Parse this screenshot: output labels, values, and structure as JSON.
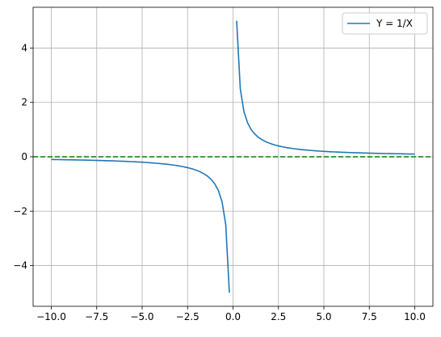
{
  "chart_data": {
    "type": "line",
    "x": [
      -10,
      -9.8,
      -9.6,
      -9.4,
      -9.2,
      -9,
      -8.8,
      -8.6,
      -8.4,
      -8.2,
      -8,
      -7.8,
      -7.6,
      -7.4,
      -7.2,
      -7,
      -6.8,
      -6.6,
      -6.4,
      -6.2,
      -6,
      -5.8,
      -5.6,
      -5.4,
      -5.2,
      -5,
      -4.8,
      -4.6,
      -4.4,
      -4.2,
      -4,
      -3.8,
      -3.6,
      -3.4,
      -3.2,
      -3,
      -2.8,
      -2.6,
      -2.4,
      -2.2,
      -2,
      -1.8,
      -1.6,
      -1.4,
      -1.2,
      -1,
      -0.8,
      -0.6,
      -0.4,
      -0.2,
      0,
      0.2,
      0.4,
      0.6,
      0.8,
      1,
      1.2,
      1.4,
      1.6,
      1.8,
      2,
      2.2,
      2.4,
      2.6,
      2.8,
      3,
      3.2,
      3.4,
      3.6,
      3.8,
      4,
      4.2,
      4.4,
      4.6,
      4.8,
      5,
      5.2,
      5.4,
      5.6,
      5.8,
      6,
      6.2,
      6.4,
      6.6,
      6.8,
      7,
      7.2,
      7.4,
      7.6,
      7.8,
      8,
      8.2,
      8.4,
      8.6,
      8.8,
      9,
      9.2,
      9.4,
      9.6,
      9.8,
      10
    ],
    "series": [
      {
        "name": "Y = 1/X",
        "color": "#1f77b4",
        "values": [
          -0.1,
          -0.10204,
          -0.10417,
          -0.10638,
          -0.1087,
          -0.11111,
          -0.11364,
          -0.11628,
          -0.11905,
          -0.12195,
          -0.125,
          -0.12821,
          -0.13158,
          -0.13514,
          -0.13889,
          -0.14286,
          -0.14706,
          -0.15152,
          -0.15625,
          -0.16129,
          -0.16667,
          -0.17241,
          -0.17857,
          -0.18519,
          -0.19231,
          -0.2,
          -0.20833,
          -0.21739,
          -0.22727,
          -0.2381,
          -0.25,
          -0.26316,
          -0.27778,
          -0.29412,
          -0.3125,
          -0.33333,
          -0.35714,
          -0.38462,
          -0.41667,
          -0.45455,
          -0.5,
          -0.55556,
          -0.625,
          -0.71429,
          -0.83333,
          -1,
          -1.25,
          -1.66667,
          -2.5,
          -5,
          null,
          5,
          2.5,
          1.66667,
          1.25,
          1,
          0.83333,
          0.71429,
          0.625,
          0.55556,
          0.5,
          0.45455,
          0.41667,
          0.38462,
          0.35714,
          0.33333,
          0.3125,
          0.29412,
          0.27778,
          0.26316,
          0.25,
          0.2381,
          0.22727,
          0.21739,
          0.20833,
          0.2,
          0.19231,
          0.18519,
          0.17857,
          0.17241,
          0.16667,
          0.16129,
          0.15625,
          0.15152,
          0.14706,
          0.14286,
          0.13889,
          0.13514,
          0.13158,
          0.12821,
          0.125,
          0.12195,
          0.11905,
          0.11628,
          0.11364,
          0.11111,
          0.1087,
          0.10638,
          0.10417,
          0.10204,
          0.1
        ]
      }
    ],
    "hline": {
      "value": 0,
      "color": "#008000",
      "linestyle": "dashed"
    },
    "xlim": [
      -11,
      11
    ],
    "xticks": [
      {
        "value": -10,
        "label": "−10.0"
      },
      {
        "value": -7.5,
        "label": "−7.5"
      },
      {
        "value": -5,
        "label": "−5.0"
      },
      {
        "value": -2.5,
        "label": "−2.5"
      },
      {
        "value": 0,
        "label": "0.0"
      },
      2.5,
      {
        "value": 5,
        "label": "5.0"
      },
      7.5,
      {
        "value": 10,
        "label": "10.0"
      }
    ],
    "ylim": [
      -5.5,
      5.5
    ],
    "yticks": [
      {
        "value": -4,
        "label": "−4"
      },
      {
        "value": -2,
        "label": "−2"
      },
      0,
      2,
      4
    ],
    "grid": true,
    "legend": "upper right"
  }
}
